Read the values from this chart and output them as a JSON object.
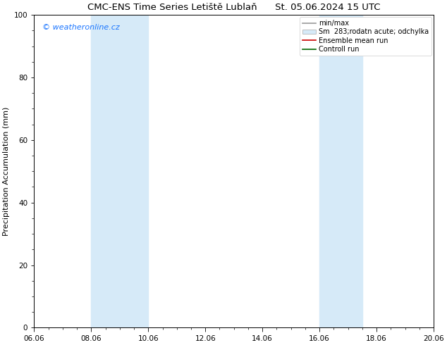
{
  "title": "CMC-ENS Time Series Letiště Lublaň      St. 05.06.2024 15 UTC",
  "ylabel": "Precipitation Accumulation (mm)",
  "ylim": [
    0,
    100
  ],
  "yticks": [
    0,
    20,
    40,
    60,
    80,
    100
  ],
  "xtick_labels": [
    "06.06",
    "08.06",
    "10.06",
    "12.06",
    "14.06",
    "16.06",
    "18.06",
    "20.06"
  ],
  "xtick_positions": [
    0,
    2,
    4,
    6,
    8,
    10,
    12,
    14
  ],
  "xlim": [
    0,
    14
  ],
  "shaded_bands": [
    {
      "x_start": 2.0,
      "x_end": 4.0,
      "color": "#d6eaf8"
    },
    {
      "x_start": 10.0,
      "x_end": 11.5,
      "color": "#d6eaf8"
    }
  ],
  "watermark_text": "© weatheronline.cz",
  "watermark_color": "#1a75ff",
  "legend_entries": [
    {
      "label": "min/max",
      "color": "#999999",
      "type": "line",
      "lw": 1.2
    },
    {
      "label": "Sm  283;rodatn acute; odchylka",
      "color": "#d6eaf8",
      "type": "patch",
      "edgecolor": "#aaaaaa"
    },
    {
      "label": "Ensemble mean run",
      "color": "#cc0000",
      "type": "line",
      "lw": 1.2
    },
    {
      "label": "Controll run",
      "color": "#006600",
      "type": "line",
      "lw": 1.2
    }
  ],
  "bg_color": "#ffffff",
  "title_fontsize": 9.5,
  "axis_label_fontsize": 8,
  "tick_fontsize": 7.5,
  "legend_fontsize": 7,
  "watermark_fontsize": 8
}
